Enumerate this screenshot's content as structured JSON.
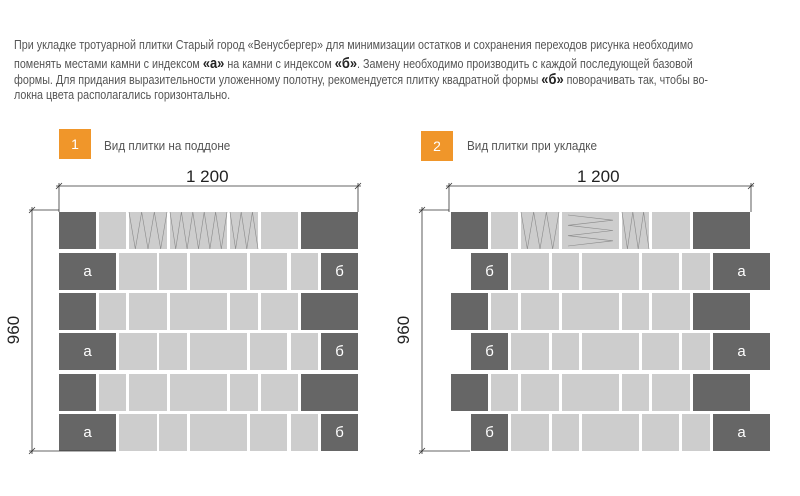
{
  "description_text": {
    "lines": [
      [
        {
          "t": "При укладке тротуарной плитки Старый город «Венусбергер» для минимизации остатков и сохранения переходов рисунка необходимо"
        }
      ],
      [
        {
          "t": "поменять местами камни с индексом "
        },
        {
          "t": "«а»",
          "b": true
        },
        {
          "t": " на камни с индексом "
        },
        {
          "t": "«б»",
          "b": true
        },
        {
          "t": ". Замену необходимо производить с каждой последующей базовой"
        }
      ],
      [
        {
          "t": "формы. Для придания выразительности уложенному полотну, рекомендуется плитку квадратной формы "
        },
        {
          "t": "«б»",
          "b": true
        },
        {
          "t": " поворачивать так, чтобы во-"
        }
      ],
      [
        {
          "t": "локна цвета располагались горизонтально."
        }
      ]
    ]
  },
  "panels": [
    {
      "number": "1",
      "caption": "Вид плитки на поддоне",
      "width_label": "1 200",
      "height_label": "960",
      "left_label": "а",
      "right_label": "б"
    },
    {
      "number": "2",
      "caption": "Вид плитки при укладке",
      "width_label": "1 200",
      "height_label": "960",
      "left_label": "б",
      "right_label": "а"
    }
  ],
  "colors": {
    "accent": "#f0962a",
    "dark_tile": "#666666",
    "light_tile": "#cdcdcd"
  }
}
